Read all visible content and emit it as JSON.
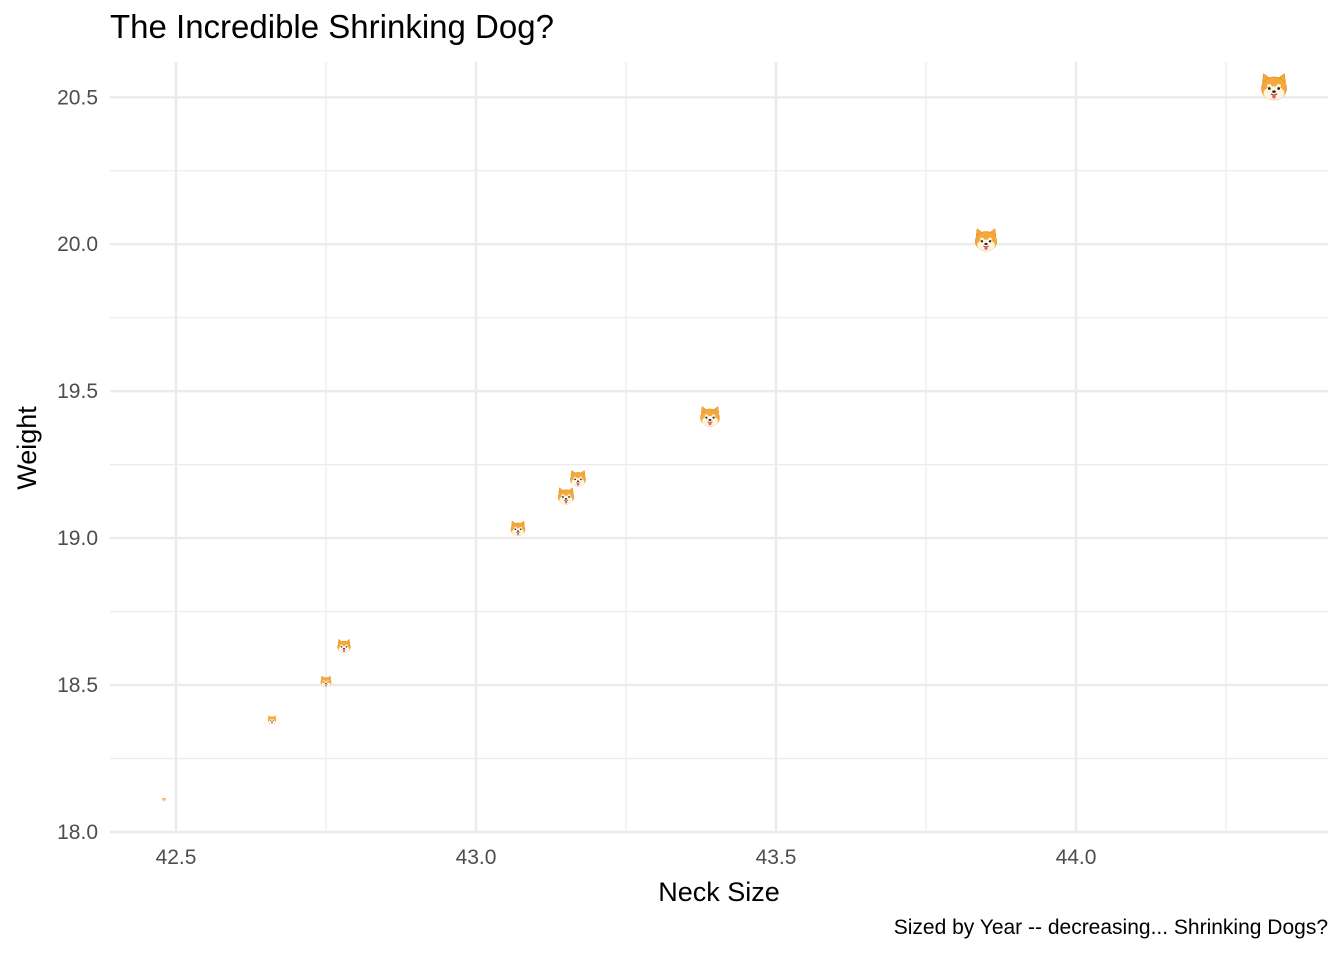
{
  "chart_data": {
    "type": "scatter",
    "title": "The Incredible Shrinking Dog?",
    "caption": "Sized by Year -- decreasing...  Shrinking Dogs?",
    "xlabel": "Neck Size",
    "ylabel": "Weight",
    "xlim": [
      42.39,
      44.42
    ],
    "ylim": [
      18.0,
      20.62
    ],
    "x_ticks": [
      "42.5",
      "43.0",
      "43.5",
      "44.0"
    ],
    "y_ticks": [
      "18.0",
      "18.5",
      "19.0",
      "19.5",
      "20.0",
      "20.5"
    ],
    "grid": true,
    "marker": "shiba-dog-face-icon",
    "colors": {
      "fur": "#F5A93B",
      "fur_dark": "#E08A1E",
      "face_light": "#FFF4DE",
      "tongue": "#E85C6E",
      "grid": "#EBEBEB"
    },
    "points": [
      {
        "x": 42.48,
        "y": 18.11,
        "size": 1
      },
      {
        "x": 42.66,
        "y": 18.38,
        "size": 3
      },
      {
        "x": 42.75,
        "y": 18.51,
        "size": 4
      },
      {
        "x": 42.78,
        "y": 18.63,
        "size": 5
      },
      {
        "x": 43.07,
        "y": 19.03,
        "size": 5.5
      },
      {
        "x": 43.17,
        "y": 19.2,
        "size": 6
      },
      {
        "x": 43.15,
        "y": 19.14,
        "size": 6.2
      },
      {
        "x": 43.39,
        "y": 19.41,
        "size": 7.5
      },
      {
        "x": 43.85,
        "y": 20.01,
        "size": 8.5
      },
      {
        "x": 44.33,
        "y": 20.53,
        "size": 10
      }
    ]
  }
}
